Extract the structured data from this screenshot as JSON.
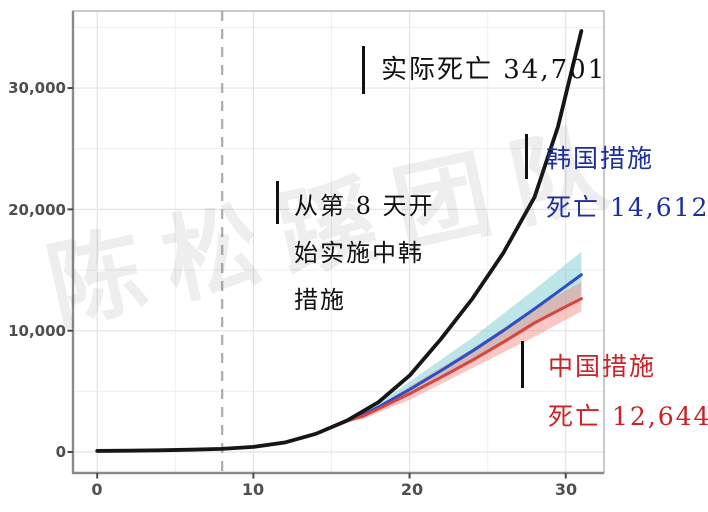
{
  "watermark": {
    "text": "陈松蹊团队"
  },
  "chart_data": {
    "type": "line",
    "title": "",
    "xlabel": "",
    "ylabel": "",
    "legend": "none",
    "grid": "on",
    "x_axis": {
      "lim": [
        -1.55,
        32.45
      ],
      "ticks": [
        {
          "value": 0,
          "label": "0"
        },
        {
          "value": 10,
          "label": "10"
        },
        {
          "value": 20,
          "label": "20"
        },
        {
          "value": 30,
          "label": "30"
        }
      ],
      "minor": [
        5,
        15,
        25
      ]
    },
    "y_axis": {
      "lim": [
        -1730,
        36350
      ],
      "ticks": [
        {
          "value": 0,
          "label": "0"
        },
        {
          "value": 10000,
          "label": "10,000"
        },
        {
          "value": 20000,
          "label": "20,000"
        },
        {
          "value": 30000,
          "label": "30,000"
        }
      ],
      "minor": [
        5000,
        15000,
        25000,
        35000
      ]
    },
    "vline": {
      "x": 8,
      "style": "dashed",
      "color": "#b0b0b0"
    },
    "bands": [
      {
        "name": "korea-ci",
        "color": "rgba(125,205,210,0.50)",
        "upper": [
          [
            16.5,
            2850
          ],
          [
            17,
            3100
          ],
          [
            20,
            5800
          ],
          [
            24,
            9400
          ],
          [
            28,
            13400
          ],
          [
            31,
            16500
          ]
        ],
        "lower": [
          [
            16.5,
            2750
          ],
          [
            17,
            2850
          ],
          [
            20,
            4700
          ],
          [
            24,
            7400
          ],
          [
            28,
            10400
          ],
          [
            31,
            12900
          ]
        ]
      },
      {
        "name": "china-ci",
        "color": "rgba(242,130,125,0.45)",
        "upper": [
          [
            16.5,
            2800
          ],
          [
            17,
            3000
          ],
          [
            20,
            5400
          ],
          [
            24,
            8500
          ],
          [
            28,
            11900
          ],
          [
            31,
            14000
          ]
        ],
        "lower": [
          [
            16.5,
            2650
          ],
          [
            17,
            2700
          ],
          [
            20,
            4300
          ],
          [
            24,
            6900
          ],
          [
            28,
            9500
          ],
          [
            31,
            11600
          ]
        ]
      }
    ],
    "series": [
      {
        "name": "korea-measures",
        "color": "#2e4fc4",
        "width": 3,
        "points": [
          [
            14,
            1500
          ],
          [
            16,
            2600
          ],
          [
            17,
            3050
          ],
          [
            18,
            3700
          ],
          [
            20,
            5150
          ],
          [
            22,
            6700
          ],
          [
            24,
            8300
          ],
          [
            26,
            10000
          ],
          [
            28,
            11800
          ],
          [
            29.5,
            13200
          ],
          [
            31,
            14612
          ]
        ]
      },
      {
        "name": "china-measures",
        "color": "#d8453f",
        "width": 3,
        "points": [
          [
            14,
            1480
          ],
          [
            16,
            2550
          ],
          [
            17,
            2950
          ],
          [
            18,
            3550
          ],
          [
            20,
            4800
          ],
          [
            22,
            6150
          ],
          [
            24,
            7550
          ],
          [
            26,
            9050
          ],
          [
            28,
            10650
          ],
          [
            29.5,
            11650
          ],
          [
            31,
            12644
          ]
        ]
      },
      {
        "name": "actual-deaths",
        "color": "#161616",
        "width": 3.8,
        "points": [
          [
            0,
            90
          ],
          [
            2,
            110
          ],
          [
            4,
            140
          ],
          [
            6,
            190
          ],
          [
            8,
            260
          ],
          [
            10,
            420
          ],
          [
            12,
            780
          ],
          [
            14,
            1500
          ],
          [
            16,
            2600
          ],
          [
            18,
            4100
          ],
          [
            20,
            6300
          ],
          [
            22,
            9300
          ],
          [
            24,
            12600
          ],
          [
            26,
            16400
          ],
          [
            28,
            21000
          ],
          [
            29.5,
            26800
          ],
          [
            31,
            34701
          ]
        ]
      }
    ],
    "annotations": [
      {
        "name": "actual-deaths-label",
        "color": "#111111",
        "value": 34701,
        "lines": [
          "实际死亡 34,701"
        ]
      },
      {
        "name": "intervention-note",
        "color": "#111111",
        "lines": [
          "从第 8 天开",
          "始实施中韩",
          "措施"
        ]
      },
      {
        "name": "korea-measures-label",
        "color": "#1c2f9e",
        "value": 14612,
        "lines": [
          "韩国措施",
          "死亡 14,612"
        ]
      },
      {
        "name": "china-measures-label",
        "color": "#cc2227",
        "value": 12644,
        "lines": [
          "中国措施",
          "死亡 12,644"
        ]
      }
    ]
  }
}
